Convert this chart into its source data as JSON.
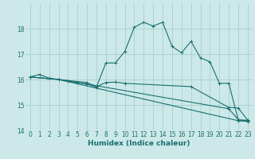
{
  "xlabel": "Humidex (Indice chaleur)",
  "bg_color": "#cce8e8",
  "grid_color": "#aacfcf",
  "line_color": "#1a7070",
  "xlim": [
    -0.5,
    23.5
  ],
  "ylim": [
    14.0,
    19.0
  ],
  "yticks": [
    14,
    15,
    16,
    17,
    18
  ],
  "xticks": [
    0,
    1,
    2,
    3,
    4,
    5,
    6,
    7,
    8,
    9,
    10,
    11,
    12,
    13,
    14,
    15,
    16,
    17,
    18,
    19,
    20,
    21,
    22,
    23
  ],
  "series": [
    {
      "x": [
        0,
        1,
        2,
        3,
        4,
        5,
        6,
        7,
        8,
        9,
        10,
        11,
        12,
        13,
        14,
        15,
        16,
        17,
        18,
        19,
        20,
        21,
        22,
        23
      ],
      "y": [
        16.1,
        16.2,
        16.05,
        16.0,
        15.95,
        15.88,
        15.82,
        15.7,
        16.65,
        16.65,
        17.1,
        18.05,
        18.25,
        18.1,
        18.25,
        17.3,
        17.05,
        17.5,
        16.85,
        16.7,
        15.85,
        15.85,
        14.4,
        14.4
      ]
    },
    {
      "x": [
        0,
        3,
        6,
        7,
        8,
        9,
        10,
        17,
        21,
        22,
        23
      ],
      "y": [
        16.1,
        16.0,
        15.88,
        15.72,
        15.88,
        15.9,
        15.85,
        15.72,
        14.9,
        14.88,
        14.4
      ]
    },
    {
      "x": [
        0,
        3,
        6,
        21,
        22,
        23
      ],
      "y": [
        16.1,
        16.0,
        15.82,
        14.85,
        14.42,
        14.38
      ]
    },
    {
      "x": [
        0,
        3,
        22,
        23
      ],
      "y": [
        16.1,
        16.0,
        14.38,
        14.35
      ]
    }
  ]
}
